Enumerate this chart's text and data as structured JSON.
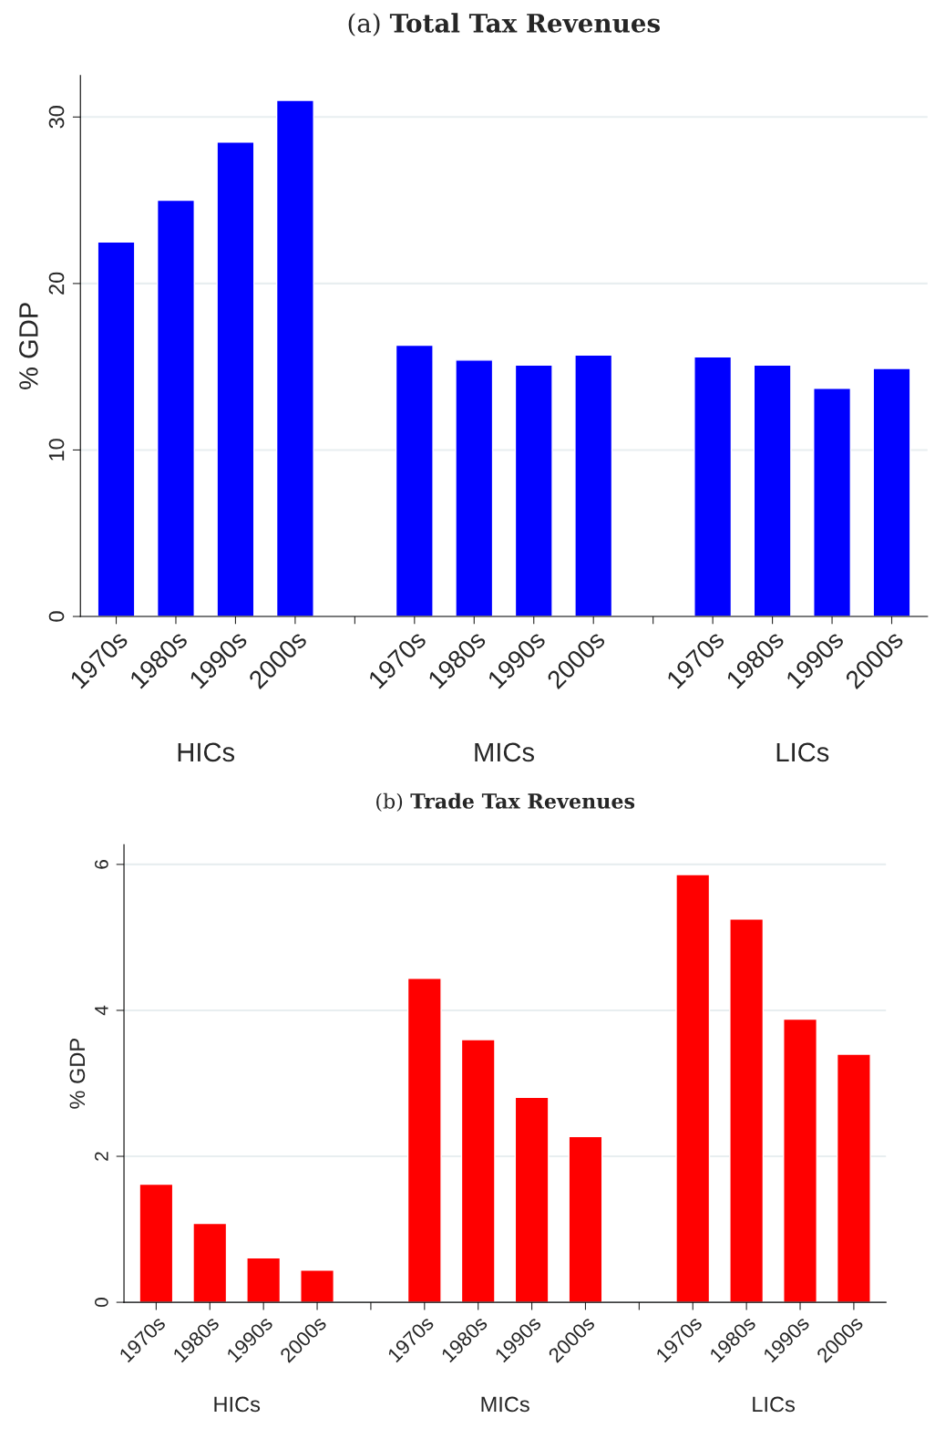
{
  "chart_data": [
    {
      "type": "bar",
      "title": "(a) Total Tax Revenues",
      "ylabel": "% GDP",
      "categories": [
        "1970s",
        "1980s",
        "1990s",
        "2000s",
        null,
        "1970s",
        "1980s",
        "1990s",
        "2000s",
        null,
        "1970s",
        "1980s",
        "1990s",
        "2000s"
      ],
      "values": [
        22.5,
        25.0,
        28.5,
        31.0,
        null,
        16.3,
        15.4,
        15.1,
        15.7,
        null,
        15.6,
        15.1,
        13.7,
        14.9
      ],
      "color": "#0000ff",
      "ylim": [
        0,
        32.5
      ],
      "yticks": [
        0,
        10,
        20,
        30
      ],
      "grid": "y",
      "annotations": [
        "HICs",
        "MICs",
        "LICs"
      ]
    },
    {
      "type": "bar",
      "title": "(b) Trade Tax Revenues",
      "ylabel": "% GDP",
      "categories": [
        "1970s",
        "1980s",
        "1990s",
        "2000s",
        null,
        "1970s",
        "1980s",
        "1990s",
        "2000s",
        null,
        "1970s",
        "1980s",
        "1990s",
        "2000s"
      ],
      "values": [
        1.62,
        1.08,
        0.61,
        0.44,
        null,
        4.44,
        3.6,
        2.81,
        2.27,
        null,
        5.86,
        5.25,
        3.88,
        3.4
      ],
      "color": "#ff0000",
      "ylim": [
        0,
        6.27
      ],
      "yticks": [
        0,
        2,
        4,
        6
      ],
      "grid": "y",
      "annotations": [
        "HICs",
        "MICs",
        "LICs"
      ]
    }
  ]
}
